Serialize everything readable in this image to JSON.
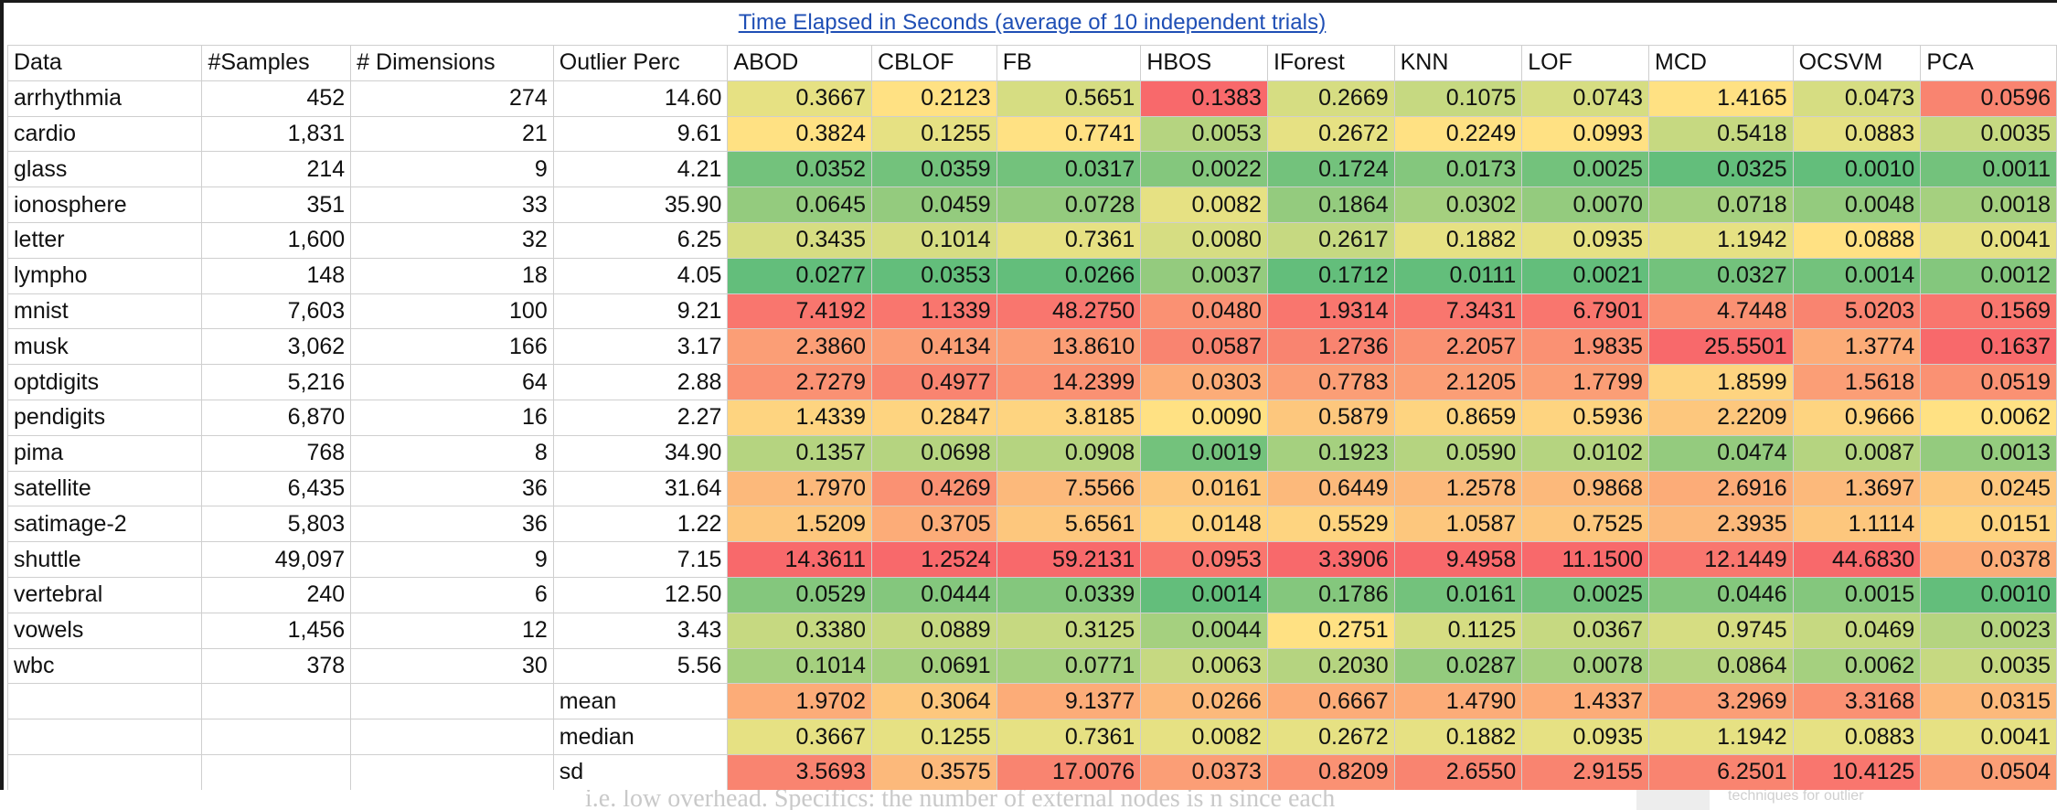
{
  "title": "Time Elapsed in Seconds (average of 10 independent trials)",
  "headers": [
    "Data",
    "#Samples",
    "# Dimensions",
    "Outlier Perc",
    "ABOD",
    "CBLOF",
    "FB",
    "HBOS",
    "IForest",
    "KNN",
    "LOF",
    "MCD",
    "OCSVM",
    "PCA"
  ],
  "rows": [
    {
      "name": "arrhythmia",
      "samples": "452",
      "dims": "274",
      "perc": "14.60",
      "times": [
        "0.3667",
        "0.2123",
        "0.5651",
        "0.1383",
        "0.2669",
        "0.1075",
        "0.0743",
        "1.4165",
        "0.0473",
        "0.0596"
      ]
    },
    {
      "name": "cardio",
      "samples": "1,831",
      "dims": "21",
      "perc": "9.61",
      "times": [
        "0.3824",
        "0.1255",
        "0.7741",
        "0.0053",
        "0.2672",
        "0.2249",
        "0.0993",
        "0.5418",
        "0.0883",
        "0.0035"
      ]
    },
    {
      "name": "glass",
      "samples": "214",
      "dims": "9",
      "perc": "4.21",
      "times": [
        "0.0352",
        "0.0359",
        "0.0317",
        "0.0022",
        "0.1724",
        "0.0173",
        "0.0025",
        "0.0325",
        "0.0010",
        "0.0011"
      ]
    },
    {
      "name": "ionosphere",
      "samples": "351",
      "dims": "33",
      "perc": "35.90",
      "times": [
        "0.0645",
        "0.0459",
        "0.0728",
        "0.0082",
        "0.1864",
        "0.0302",
        "0.0070",
        "0.0718",
        "0.0048",
        "0.0018"
      ]
    },
    {
      "name": "letter",
      "samples": "1,600",
      "dims": "32",
      "perc": "6.25",
      "times": [
        "0.3435",
        "0.1014",
        "0.7361",
        "0.0080",
        "0.2617",
        "0.1882",
        "0.0935",
        "1.1942",
        "0.0888",
        "0.0041"
      ]
    },
    {
      "name": "lympho",
      "samples": "148",
      "dims": "18",
      "perc": "4.05",
      "times": [
        "0.0277",
        "0.0353",
        "0.0266",
        "0.0037",
        "0.1712",
        "0.0111",
        "0.0021",
        "0.0327",
        "0.0014",
        "0.0012"
      ]
    },
    {
      "name": "mnist",
      "samples": "7,603",
      "dims": "100",
      "perc": "9.21",
      "times": [
        "7.4192",
        "1.1339",
        "48.2750",
        "0.0480",
        "1.9314",
        "7.3431",
        "6.7901",
        "4.7448",
        "5.0203",
        "0.1569"
      ]
    },
    {
      "name": "musk",
      "samples": "3,062",
      "dims": "166",
      "perc": "3.17",
      "times": [
        "2.3860",
        "0.4134",
        "13.8610",
        "0.0587",
        "1.2736",
        "2.2057",
        "1.9835",
        "25.5501",
        "1.3774",
        "0.1637"
      ]
    },
    {
      "name": "optdigits",
      "samples": "5,216",
      "dims": "64",
      "perc": "2.88",
      "times": [
        "2.7279",
        "0.4977",
        "14.2399",
        "0.0303",
        "0.7783",
        "2.1205",
        "1.7799",
        "1.8599",
        "1.5618",
        "0.0519"
      ]
    },
    {
      "name": "pendigits",
      "samples": "6,870",
      "dims": "16",
      "perc": "2.27",
      "times": [
        "1.4339",
        "0.2847",
        "3.8185",
        "0.0090",
        "0.5879",
        "0.8659",
        "0.5936",
        "2.2209",
        "0.9666",
        "0.0062"
      ]
    },
    {
      "name": "pima",
      "samples": "768",
      "dims": "8",
      "perc": "34.90",
      "times": [
        "0.1357",
        "0.0698",
        "0.0908",
        "0.0019",
        "0.1923",
        "0.0590",
        "0.0102",
        "0.0474",
        "0.0087",
        "0.0013"
      ]
    },
    {
      "name": "satellite",
      "samples": "6,435",
      "dims": "36",
      "perc": "31.64",
      "times": [
        "1.7970",
        "0.4269",
        "7.5566",
        "0.0161",
        "0.6449",
        "1.2578",
        "0.9868",
        "2.6916",
        "1.3697",
        "0.0245"
      ]
    },
    {
      "name": "satimage-2",
      "samples": "5,803",
      "dims": "36",
      "perc": "1.22",
      "times": [
        "1.5209",
        "0.3705",
        "5.6561",
        "0.0148",
        "0.5529",
        "1.0587",
        "0.7525",
        "2.3935",
        "1.1114",
        "0.0151"
      ]
    },
    {
      "name": "shuttle",
      "samples": "49,097",
      "dims": "9",
      "perc": "7.15",
      "times": [
        "14.3611",
        "1.2524",
        "59.2131",
        "0.0953",
        "3.3906",
        "9.4958",
        "11.1500",
        "12.1449",
        "44.6830",
        "0.0378"
      ]
    },
    {
      "name": "vertebral",
      "samples": "240",
      "dims": "6",
      "perc": "12.50",
      "times": [
        "0.0529",
        "0.0444",
        "0.0339",
        "0.0014",
        "0.1786",
        "0.0161",
        "0.0025",
        "0.0446",
        "0.0015",
        "0.0010"
      ]
    },
    {
      "name": "vowels",
      "samples": "1,456",
      "dims": "12",
      "perc": "3.43",
      "times": [
        "0.3380",
        "0.0889",
        "0.3125",
        "0.0044",
        "0.2751",
        "0.1125",
        "0.0367",
        "0.9745",
        "0.0469",
        "0.0023"
      ]
    },
    {
      "name": "wbc",
      "samples": "378",
      "dims": "30",
      "perc": "5.56",
      "times": [
        "0.1014",
        "0.0691",
        "0.0771",
        "0.0063",
        "0.2030",
        "0.0287",
        "0.0078",
        "0.0864",
        "0.0062",
        "0.0035"
      ]
    }
  ],
  "stats": [
    {
      "label": "mean",
      "times": [
        "1.9702",
        "0.3064",
        "9.1377",
        "0.0266",
        "0.6667",
        "1.4790",
        "1.4337",
        "3.2969",
        "3.3168",
        "0.0315"
      ]
    },
    {
      "label": "median",
      "times": [
        "0.3667",
        "0.1255",
        "0.7361",
        "0.0082",
        "0.2672",
        "0.1882",
        "0.0935",
        "1.1942",
        "0.0883",
        "0.0041"
      ]
    },
    {
      "label": "sd",
      "times": [
        "3.5693",
        "0.3575",
        "17.0076",
        "0.0373",
        "0.8209",
        "2.6550",
        "2.9155",
        "6.2501",
        "10.4125",
        "0.0504"
      ]
    }
  ],
  "colors": {
    "title": "#1f4fb5",
    "scale_low": "#63be7b",
    "scale_mid": "#ffe884",
    "scale_high": "#f8696b",
    "grid": "#cfcfcf"
  },
  "footer_bleed": {
    "text": "i.e. low overhead. Specifics: the number of external nodes is n since each",
    "side_text": "techniques for outlier"
  }
}
